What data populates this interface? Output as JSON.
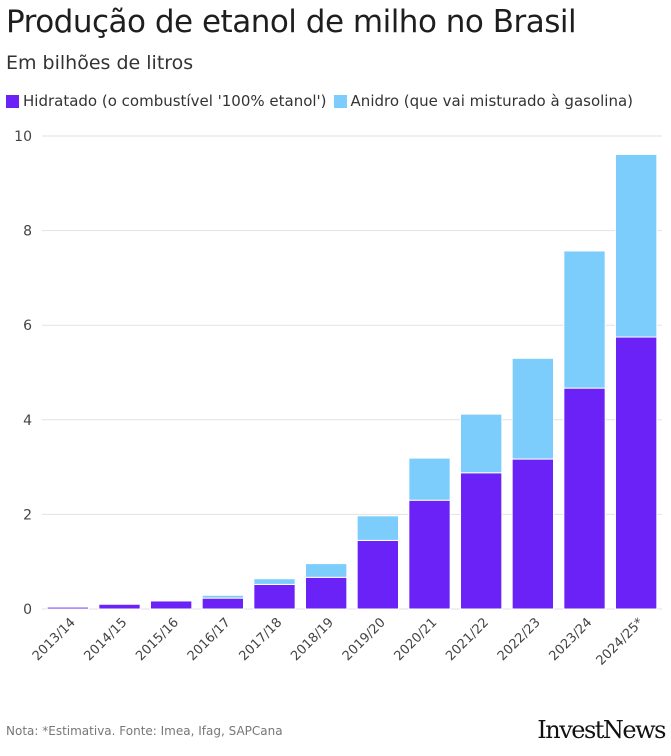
{
  "header": {
    "title": "Produção de etanol de milho no Brasil",
    "subtitle": "Em bilhões de litros"
  },
  "legend": [
    {
      "label": "Hidratado (o combustível '100% etanol')",
      "color": "#6a22f7"
    },
    {
      "label": "Anidro (que vai misturado à gasolina)",
      "color": "#7ccdfc"
    }
  ],
  "footer": {
    "note": "Nota: *Estimativa. Fonte: Imea, Ifag, SAPCana",
    "logo": "InvestNews"
  },
  "chart_data": {
    "type": "bar",
    "stacked": true,
    "categories": [
      "2013/14",
      "2014/15",
      "2015/16",
      "2016/17",
      "2017/18",
      "2018/19",
      "2019/20",
      "2020/21",
      "2021/22",
      "2022/23",
      "2023/24",
      "2024/25*"
    ],
    "series": [
      {
        "name": "Hidratado (o combustível '100% etanol')",
        "color": "#6a22f7",
        "values": [
          0.04,
          0.1,
          0.17,
          0.23,
          0.52,
          0.67,
          1.45,
          2.3,
          2.88,
          3.17,
          4.67,
          5.75
        ]
      },
      {
        "name": "Anidro (que vai misturado à gasolina)",
        "color": "#7ccdfc",
        "values": [
          0.0,
          0.0,
          0.0,
          0.06,
          0.12,
          0.29,
          0.52,
          0.89,
          1.24,
          2.13,
          2.9,
          3.86
        ]
      }
    ],
    "yticks": [
      0,
      2,
      4,
      6,
      8,
      10
    ],
    "ylim": [
      0,
      10
    ],
    "grid": true,
    "legend_position": "top-left"
  }
}
